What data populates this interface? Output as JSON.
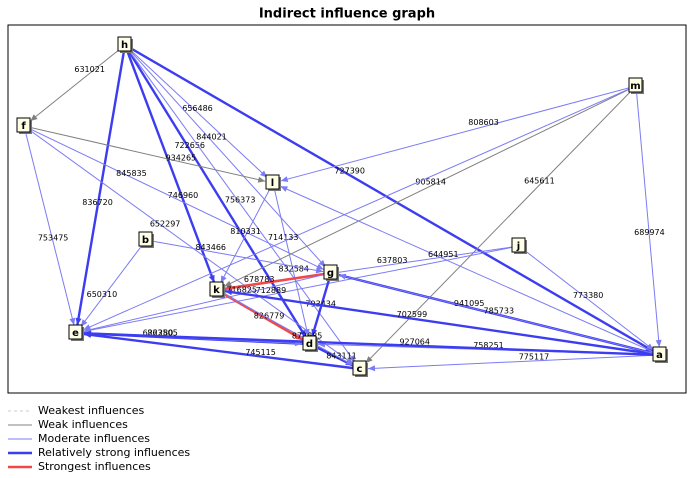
{
  "header": {
    "title": "Indirect influence graph"
  },
  "nodes": [
    {
      "label": "h"
    },
    {
      "label": "f"
    },
    {
      "label": "m"
    },
    {
      "label": "l"
    },
    {
      "label": "b"
    },
    {
      "label": "j"
    },
    {
      "label": "g"
    },
    {
      "label": "k"
    },
    {
      "label": "e"
    },
    {
      "label": "d"
    },
    {
      "label": "c"
    },
    {
      "label": "a"
    }
  ],
  "edges": [
    {
      "from": "h",
      "to": "f",
      "color": "#808080",
      "label": "631021"
    },
    {
      "from": "h",
      "to": "a",
      "color": "#3c3cf0",
      "label": "727390"
    },
    {
      "from": "h",
      "to": "l",
      "color": "#7b7bf5",
      "label": "656486"
    },
    {
      "from": "h",
      "to": "e",
      "color": "#3c3cf0",
      "label": "836720"
    },
    {
      "from": "h",
      "to": "k",
      "color": "#3c3cf0",
      "label": "746960"
    },
    {
      "from": "h",
      "to": "d",
      "color": "#3c3cf0",
      "label": "722656"
    },
    {
      "from": "h",
      "to": "g",
      "color": "#7b7bf5",
      "label": "844021"
    },
    {
      "from": "h",
      "to": "c",
      "color": "#7b7bf5",
      "label": "756373"
    },
    {
      "from": "f",
      "to": "e",
      "color": "#7b7bf5",
      "label": "753475"
    },
    {
      "from": "f",
      "to": "l",
      "color": "#808080",
      "label": "934265"
    },
    {
      "from": "f",
      "to": "g",
      "color": "#7b7bf5",
      "label": "845835"
    },
    {
      "from": "f",
      "to": "c",
      "color": "#7b7bf5",
      "label": "652297"
    },
    {
      "from": "m",
      "to": "k",
      "color": "#808080",
      "label": "905814"
    },
    {
      "from": "m",
      "to": "a",
      "color": "#7b7bf5",
      "label": "689974"
    },
    {
      "from": "m",
      "to": "e",
      "color": "#7b7bf5",
      "label": "714133"
    },
    {
      "from": "m",
      "to": "c",
      "color": "#808080",
      "label": "645611"
    },
    {
      "from": "m",
      "to": "l",
      "color": "#7b7bf5",
      "label": "808603"
    },
    {
      "from": "l",
      "to": "k",
      "color": "#7b7bf5",
      "label": "810331"
    },
    {
      "from": "l",
      "to": "d",
      "color": "#7b7bf5",
      "label": "832584"
    },
    {
      "from": "b",
      "to": "e",
      "color": "#7b7bf5",
      "label": "650310"
    },
    {
      "from": "b",
      "to": "g",
      "color": "#7b7bf5",
      "label": "843466"
    },
    {
      "from": "j",
      "to": "k",
      "color": "#7b7bf5",
      "label": "637803"
    },
    {
      "from": "j",
      "to": "a",
      "color": "#7b7bf5",
      "label": "773380"
    },
    {
      "from": "j",
      "to": "e",
      "color": "#7b7bf5",
      "label": "712889"
    },
    {
      "from": "g",
      "to": "k",
      "color": "#f04848",
      "label": "678783"
    },
    {
      "from": "g",
      "to": "e",
      "color": "#7b7bf5",
      "label": "716825"
    },
    {
      "from": "g",
      "to": "a",
      "color": "#3c3cf0",
      "label": "941095"
    },
    {
      "from": "g",
      "to": "d",
      "color": "#3c3cf0",
      "label": "793434"
    },
    {
      "from": "k",
      "to": "d",
      "color": "#f04848",
      "label": "826779"
    },
    {
      "from": "d",
      "to": "e",
      "color": "#3c3cf0",
      "label": "863505"
    },
    {
      "from": "c",
      "to": "e",
      "color": "#3c3cf0",
      "label": "745115"
    },
    {
      "from": "a",
      "to": "c",
      "color": "#7b7bf5",
      "label": "775117"
    },
    {
      "from": "a",
      "to": "d",
      "color": "#7b7bf5",
      "label": "758251"
    },
    {
      "from": "a",
      "to": "k",
      "color": "#3c3cf0",
      "label": "702599"
    },
    {
      "from": "d",
      "to": "c",
      "color": "#3c3cf0",
      "label": "843111"
    },
    {
      "from": "e",
      "to": "d",
      "color": "#7b7bf5",
      "label": "622280"
    },
    {
      "from": "a",
      "to": "e",
      "color": "#3c3cf0",
      "label": "927064"
    },
    {
      "from": "a",
      "to": "g",
      "color": "#7b7bf5",
      "label": "785733"
    },
    {
      "from": "a",
      "to": "l",
      "color": "#7b7bf5",
      "label": "644951"
    },
    {
      "from": "k",
      "to": "c",
      "color": "#7b7bf5",
      "label": "872685"
    }
  ],
  "legend": [
    {
      "label": "Weakest influences",
      "color": "#cccccc"
    },
    {
      "label": "Weak influences",
      "color": "#808080"
    },
    {
      "label": "Moderate influences",
      "color": "#7b7bf5"
    },
    {
      "label": "Relatively strong influences",
      "color": "#3c3cf0"
    },
    {
      "label": "Strongest influences",
      "color": "#f04848"
    }
  ]
}
